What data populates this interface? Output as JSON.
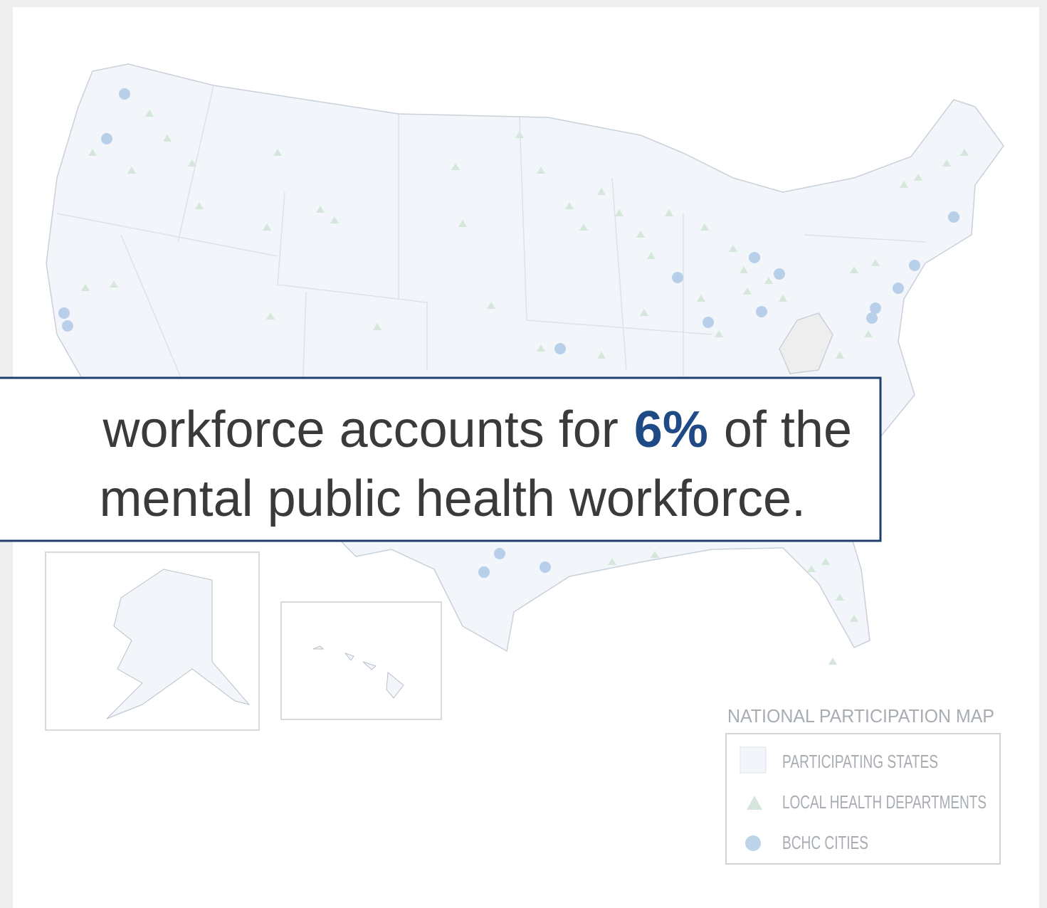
{
  "callout": {
    "line1": [
      "workforce accounts for",
      "6%",
      "of the"
    ],
    "line2": "mental public health workforce."
  },
  "legend": {
    "title": "NATIONAL PARTICIPATION MAP",
    "items": [
      "PARTICIPATING STATES",
      "LOCAL HEALTH DEPARTMENTS",
      "BCHC CITIES"
    ]
  }
}
